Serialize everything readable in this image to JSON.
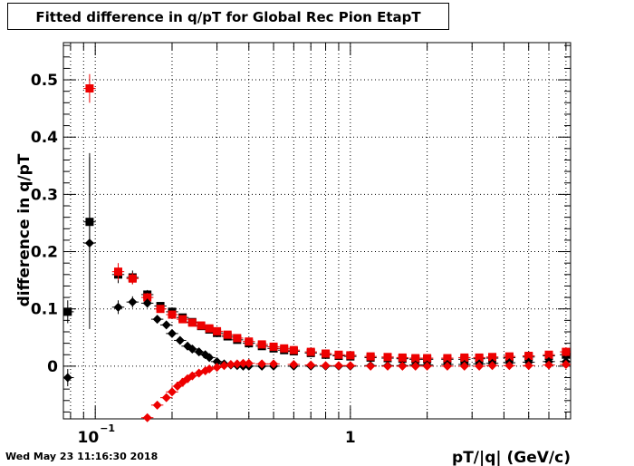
{
  "chart_data": {
    "type": "scatter",
    "title": "Fitted difference in q/pT for Global Rec Pion EtapT",
    "xlabel": "pT/|q| (GeV/c)",
    "ylabel": "difference in q/pT",
    "xscale": "log",
    "xlim": [
      0.075,
      7.3
    ],
    "ylim": [
      -0.092,
      0.565
    ],
    "grid": true,
    "x_ticks": [
      {
        "value": 0.1,
        "label": "10",
        "exp": "−1"
      },
      {
        "value": 1,
        "label": "1",
        "exp": ""
      }
    ],
    "y_ticks": [
      {
        "value": 0,
        "label": "0"
      },
      {
        "value": 0.1,
        "label": "0.1"
      },
      {
        "value": 0.2,
        "label": "0.2"
      },
      {
        "value": 0.3,
        "label": "0.3"
      },
      {
        "value": 0.4,
        "label": "0.4"
      },
      {
        "value": 0.5,
        "label": "0.5"
      }
    ],
    "series": [
      {
        "color": "#000000",
        "marker": "square",
        "x": [
          0.078,
          0.095,
          0.123,
          0.14,
          0.16,
          0.18,
          0.2,
          0.22,
          0.24,
          0.26,
          0.28,
          0.3,
          0.33,
          0.36,
          0.4,
          0.45,
          0.5,
          0.55,
          0.6,
          0.7,
          0.8,
          0.9,
          1.0,
          1.2,
          1.4,
          1.6,
          1.8,
          2.0,
          2.4,
          2.8,
          3.2,
          3.6,
          4.2,
          5.0,
          6.0,
          7.0
        ],
        "y": [
          0.095,
          0.252,
          0.16,
          0.155,
          0.125,
          0.105,
          0.095,
          0.085,
          0.077,
          0.07,
          0.064,
          0.058,
          0.052,
          0.046,
          0.04,
          0.035,
          0.031,
          0.028,
          0.026,
          0.023,
          0.02,
          0.018,
          0.017,
          0.015,
          0.014,
          0.013,
          0.012,
          0.012,
          0.012,
          0.012,
          0.013,
          0.014,
          0.015,
          0.016,
          0.018,
          0.02
        ],
        "yerr": [
          0.02,
          0.12,
          0.015,
          0.012,
          0.008,
          0.006,
          0.005,
          0.004,
          0.004,
          0.003,
          0.003,
          0.003,
          0.003,
          0.003,
          0.002,
          0.002,
          0.002,
          0.002,
          0.002,
          0.002,
          0.002,
          0.002,
          0.002,
          0.002,
          0.002,
          0.002,
          0.002,
          0.002,
          0.002,
          0.003,
          0.003,
          0.003,
          0.004,
          0.005,
          0.006,
          0.008
        ]
      },
      {
        "color": "#ee0000",
        "marker": "square",
        "x": [
          0.095,
          0.123,
          0.14,
          0.16,
          0.18,
          0.2,
          0.22,
          0.24,
          0.26,
          0.28,
          0.3,
          0.33,
          0.36,
          0.4,
          0.45,
          0.5,
          0.55,
          0.6,
          0.7,
          0.8,
          0.9,
          1.0,
          1.2,
          1.4,
          1.6,
          1.8,
          2.0,
          2.4,
          2.8,
          3.2,
          3.6,
          4.2,
          5.0,
          6.0,
          7.0
        ],
        "y": [
          0.485,
          0.165,
          0.153,
          0.12,
          0.1,
          0.09,
          0.082,
          0.076,
          0.071,
          0.066,
          0.061,
          0.055,
          0.049,
          0.043,
          0.038,
          0.034,
          0.031,
          0.028,
          0.025,
          0.022,
          0.02,
          0.019,
          0.017,
          0.016,
          0.015,
          0.014,
          0.014,
          0.014,
          0.015,
          0.015,
          0.016,
          0.017,
          0.018,
          0.02,
          0.025
        ],
        "yerr": [
          0.025,
          0.015,
          0.01,
          0.008,
          0.006,
          0.005,
          0.004,
          0.004,
          0.003,
          0.003,
          0.003,
          0.003,
          0.003,
          0.002,
          0.002,
          0.002,
          0.002,
          0.002,
          0.002,
          0.002,
          0.002,
          0.002,
          0.002,
          0.002,
          0.002,
          0.002,
          0.002,
          0.002,
          0.003,
          0.003,
          0.003,
          0.004,
          0.005,
          0.006,
          0.008
        ]
      },
      {
        "color": "#000000",
        "marker": "diamond",
        "x": [
          0.078,
          0.095,
          0.123,
          0.14,
          0.16,
          0.175,
          0.19,
          0.2,
          0.215,
          0.23,
          0.24,
          0.255,
          0.27,
          0.28,
          0.3,
          0.32,
          0.34,
          0.36,
          0.38,
          0.4,
          0.45,
          0.5,
          0.6,
          0.7,
          0.8,
          0.9,
          1.0,
          1.2,
          1.4,
          1.6,
          1.8,
          2.0,
          2.4,
          2.8,
          3.2,
          3.6,
          4.2,
          5.0,
          6.0,
          7.0
        ],
        "y": [
          -0.02,
          0.215,
          0.103,
          0.112,
          0.11,
          0.082,
          0.072,
          0.057,
          0.045,
          0.035,
          0.03,
          0.025,
          0.02,
          0.015,
          0.008,
          0.004,
          0.002,
          0.001,
          0.0,
          0.0,
          0.0,
          0.0,
          0.0,
          0.0,
          0.0,
          0.0,
          0.0,
          0.001,
          0.001,
          0.001,
          0.002,
          0.002,
          0.003,
          0.003,
          0.004,
          0.005,
          0.006,
          0.007,
          0.008,
          0.008
        ],
        "yerr": [
          0.015,
          0.15,
          0.012,
          0.01,
          0.008,
          0.006,
          0.005,
          0.004,
          0.004,
          0.003,
          0.003,
          0.003,
          0.003,
          0.003,
          0.002,
          0.002,
          0.002,
          0.002,
          0.002,
          0.002,
          0.002,
          0.002,
          0.002,
          0.002,
          0.002,
          0.002,
          0.002,
          0.002,
          0.002,
          0.002,
          0.002,
          0.002,
          0.003,
          0.003,
          0.003,
          0.004,
          0.004,
          0.005,
          0.006,
          0.007
        ]
      },
      {
        "color": "#ee0000",
        "marker": "diamond",
        "x": [
          0.16,
          0.175,
          0.19,
          0.2,
          0.21,
          0.22,
          0.23,
          0.24,
          0.255,
          0.27,
          0.28,
          0.3,
          0.32,
          0.34,
          0.36,
          0.38,
          0.4,
          0.45,
          0.5,
          0.6,
          0.7,
          0.8,
          0.9,
          1.0,
          1.2,
          1.4,
          1.6,
          1.8,
          2.0,
          2.4,
          2.8,
          3.2,
          3.6,
          4.2,
          5.0,
          6.0,
          7.0
        ],
        "y": [
          -0.09,
          -0.068,
          -0.055,
          -0.045,
          -0.035,
          -0.028,
          -0.022,
          -0.017,
          -0.012,
          -0.008,
          -0.005,
          -0.002,
          0.001,
          0.003,
          0.004,
          0.005,
          0.005,
          0.004,
          0.004,
          0.003,
          0.002,
          0.001,
          0.001,
          0.001,
          0.0,
          0.0,
          0.0,
          0.0,
          0.0,
          0.0,
          0.0,
          0.0,
          0.001,
          0.001,
          0.001,
          0.002,
          0.003
        ],
        "yerr": [
          0.006,
          0.005,
          0.004,
          0.004,
          0.003,
          0.003,
          0.003,
          0.003,
          0.003,
          0.002,
          0.002,
          0.002,
          0.002,
          0.002,
          0.002,
          0.002,
          0.002,
          0.002,
          0.002,
          0.002,
          0.002,
          0.002,
          0.002,
          0.002,
          0.002,
          0.002,
          0.002,
          0.002,
          0.002,
          0.002,
          0.003,
          0.003,
          0.003,
          0.004,
          0.005,
          0.006,
          0.007
        ]
      }
    ]
  },
  "timestamp": "Wed May 23 11:16:30 2018"
}
